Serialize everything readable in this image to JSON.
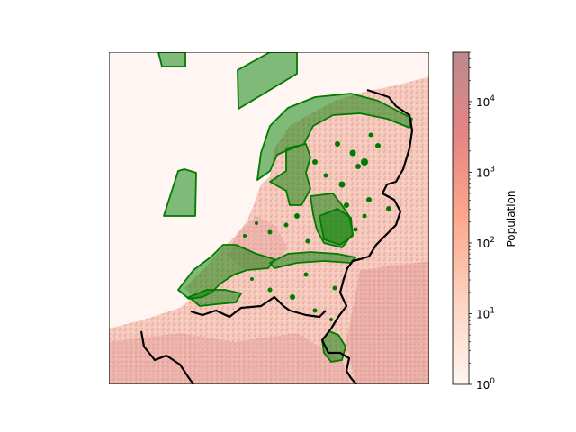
{
  "map": {
    "layers": [
      "population-density-raster",
      "protected-areas",
      "national-border"
    ],
    "colors": {
      "sea": "#fff5f2",
      "land_low": "#fde6df",
      "land_mid": "#f2b3a8",
      "land_high": "#d98a8a",
      "protected_fill": "#008000",
      "protected_edge": "#007a00",
      "border": "#000000"
    }
  },
  "colorbar": {
    "label": "Population",
    "scale": "log",
    "range": [
      1,
      50000
    ],
    "ticks": [
      {
        "base": "10",
        "exp": "0"
      },
      {
        "base": "10",
        "exp": "1"
      },
      {
        "base": "10",
        "exp": "2"
      },
      {
        "base": "10",
        "exp": "3"
      },
      {
        "base": "10",
        "exp": "4"
      }
    ],
    "colors": [
      "#fff5f0",
      "#fcbba1",
      "#fc9272",
      "#e57373",
      "#bc8a8e"
    ]
  }
}
